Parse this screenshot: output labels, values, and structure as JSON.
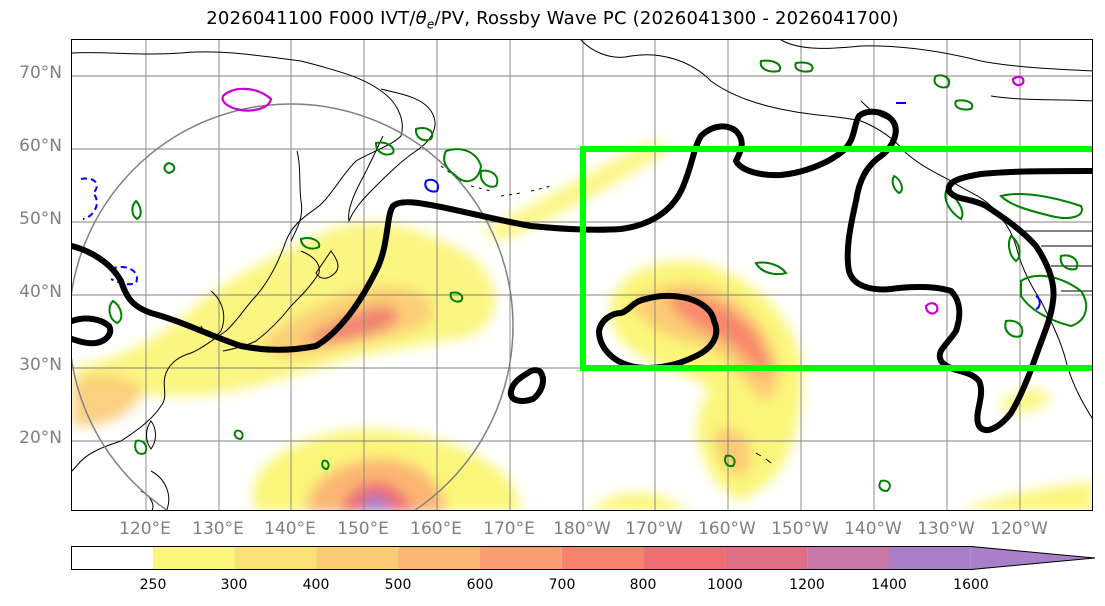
{
  "title_main": "2026041100 F000 IVT/",
  "title_theta": "θ",
  "title_theta_sub": "e",
  "title_rest": "/PV, Rossby Wave PC (2026041300 - 2026041700)",
  "map": {
    "lat_labels": [
      "70°N",
      "60°N",
      "50°N",
      "40°N",
      "30°N",
      "20°N"
    ],
    "lon_labels": [
      "120°E",
      "130°E",
      "140°E",
      "150°E",
      "160°E",
      "170°E",
      "180°W",
      "170°W",
      "160°W",
      "150°W",
      "140°W",
      "130°W",
      "120°W"
    ]
  },
  "colorbar": {
    "ticks": [
      "250",
      "300",
      "400",
      "500",
      "600",
      "700",
      "800",
      "1000",
      "1200",
      "1400",
      "1600"
    ],
    "colors": [
      "#ffffff",
      "#fbf67a",
      "#fae176",
      "#fbcb74",
      "#fbb573",
      "#fa9d6f",
      "#f7836d",
      "#ee6e71",
      "#df6e86",
      "#c877a6",
      "#a87fc8"
    ]
  },
  "colors": {
    "box": "#00ff00",
    "contour_theta": "#000000",
    "contour_pv_pos": "#008000",
    "contour_pv_neg": "#0000ff",
    "contour_magenta": "#cc00cc",
    "grid": "#808080"
  }
}
